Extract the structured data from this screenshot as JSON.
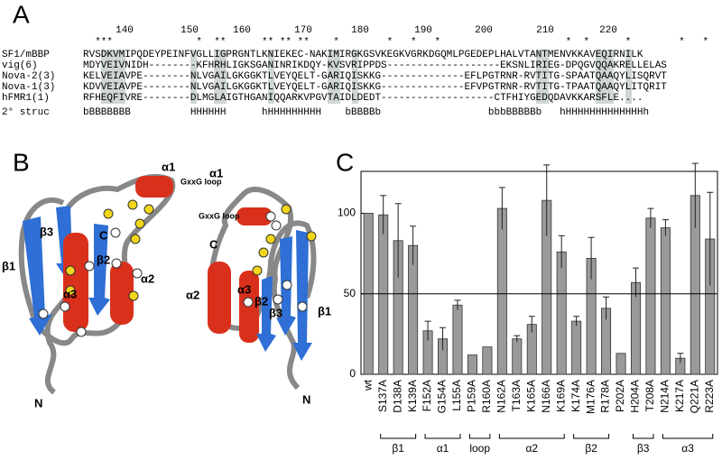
{
  "panels": [
    "A",
    "B",
    "C"
  ],
  "alignment": {
    "ruler": [
      "140",
      "150",
      "160",
      "170",
      "180",
      "190",
      "200",
      "210",
      "220"
    ],
    "stars": "  ***              *  **      ** ** **    *        *   *   *                     *  *      *        *   *      * *",
    "rows": [
      {
        "name": "SF1/mBBP",
        "seq": "RVSDKVMIPQDEYPEINFVGLLIGPRGNTLKNIEKEC-NAKIMIRGKGSVKEGKVGRKDGQMLPGEDEPLHALVTANTMENVKKAVEQIRNILK"
      },
      {
        "name": "vig(6)",
        "seq": "MDYVEIVNIDH--------KFHRHLIGKSGANINRIKDQY-KVSVRIPPDS-------------------EKSNLIRIEG-DPQGVQQAKRELLELAS"
      },
      {
        "name": "Nova-2(3)",
        "seq": "KELVEIAVPE--------NLVGAILGKGGKTLVEYQELT-GARIQISKKG--------------EFLPGTRNR-RVTITG-SPAATQAAQYLISQRVT"
      },
      {
        "name": "Nova-1(3)",
        "seq": "KDVVEIAVPE--------NLVGAILGKGGKTLVEYQELT-GARIQISKKG--------------EFVPGTRNR-RVTITG-TPAATQAAQYLITQRIT"
      },
      {
        "name": "hFMR1(1)",
        "seq": "RFHEQFIVRE--------DLMGLAIGTHGANIQQARKVPGVTAIDLDEDT-------------------CTFHIYGEDQDAVKKARSFLE...."
      },
      {
        "name": "2° struc",
        "seq": "bBBBBBBB          HHHHHH      hHHHHHHHHH    bBBBBb                  bbbBBBBBb   hHHHHHHHHHHHHHh"
      }
    ]
  },
  "structure": {
    "left": [
      "α1",
      "GxxG loop",
      "β3",
      "β2",
      "β1",
      "α3",
      "α2",
      "C",
      "N"
    ],
    "right": [
      "α1",
      "GxxG loop",
      "C",
      "α2",
      "α3",
      "β2",
      "β3",
      "β1",
      "N"
    ]
  },
  "chart_data": {
    "type": "bar",
    "categories": [
      "wt",
      "S137A",
      "D138A",
      "K139A",
      "F152A",
      "G154A",
      "L155A",
      "P159A",
      "R160A",
      "N162A",
      "T163A",
      "K165A",
      "N166A",
      "K169A",
      "K174A",
      "M176A",
      "R178A",
      "P202A",
      "H204A",
      "T208A",
      "N214A",
      "K217A",
      "Q221A",
      "R223A"
    ],
    "values": [
      100,
      99,
      83,
      80,
      27,
      22,
      43,
      12,
      17,
      103,
      22,
      31,
      108,
      76,
      33,
      72,
      41,
      13,
      57,
      97,
      91,
      10,
      111,
      84
    ],
    "errors": [
      null,
      12,
      23,
      12,
      6,
      7,
      3,
      null,
      null,
      13,
      2,
      5,
      22,
      10,
      3,
      13,
      7,
      null,
      9,
      6,
      5,
      3,
      20,
      29
    ],
    "color": "#9a9a9a",
    "ylim": [
      0,
      126
    ],
    "yticks": [
      0,
      50,
      100
    ],
    "reference_line": 50,
    "groups": [
      {
        "label": "β1",
        "first": "S137A",
        "last": "K139A"
      },
      {
        "label": "α1",
        "first": "F152A",
        "last": "L155A"
      },
      {
        "label": "loop",
        "first": "P159A",
        "last": "R160A"
      },
      {
        "label": "α2",
        "first": "N162A",
        "last": "K169A"
      },
      {
        "label": "β2",
        "first": "K174A",
        "last": "R178A"
      },
      {
        "label": "β3",
        "first": "H204A",
        "last": "T208A"
      },
      {
        "label": "α3",
        "first": "N214A",
        "last": "R223A"
      }
    ]
  }
}
